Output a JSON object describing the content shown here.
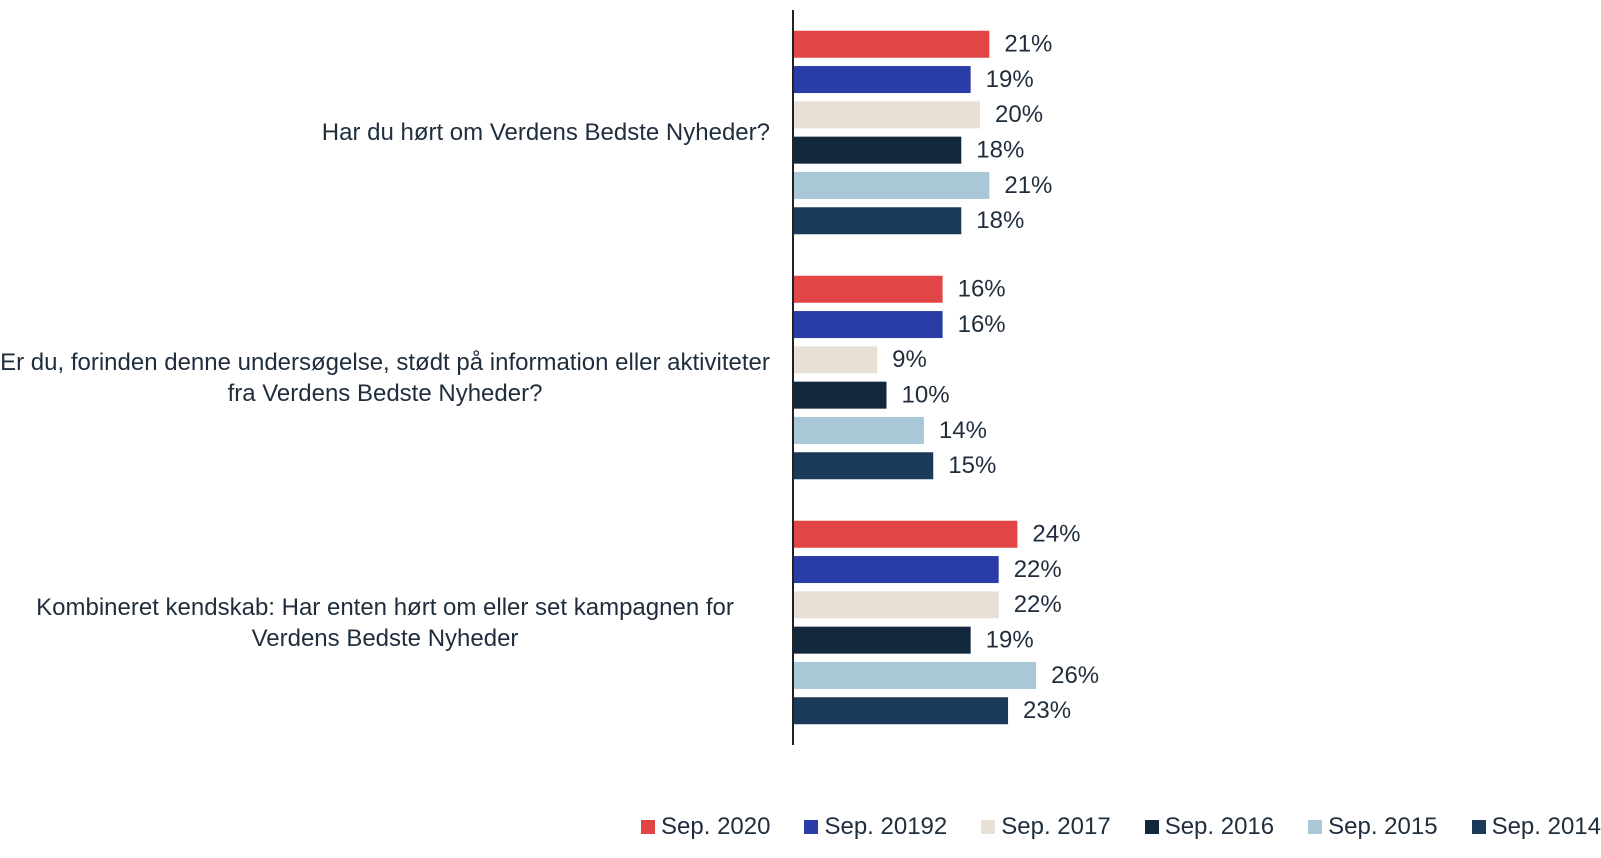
{
  "chart_data": {
    "type": "bar",
    "orientation": "horizontal",
    "categories": [
      "Har du hørt om Verdens Bedste Nyheder?",
      "Er du, forinden denne undersøgelse, stødt på information eller aktiviteter fra Verdens Bedste Nyheder?",
      "Kombineret kendskab: Har enten hørt om eller set kampagnen for Verdens Bedste Nyheder"
    ],
    "xlim": [
      0,
      80
    ],
    "legend": "bottom",
    "series": [
      {
        "name": "Sep. 2020",
        "color": "#e24545",
        "values": [
          21,
          16,
          24
        ],
        "value_labels": [
          "21%",
          "16%",
          "24%"
        ]
      },
      {
        "name": "Sep. 20192",
        "color": "#2a3ca5",
        "values": [
          19,
          16,
          22
        ],
        "value_labels": [
          "19%",
          "16%",
          "22%"
        ]
      },
      {
        "name": "Sep. 2017",
        "color": "#e8e0d4",
        "values": [
          20,
          9,
          22
        ],
        "value_labels": [
          "20%",
          "9%",
          "22%"
        ]
      },
      {
        "name": "Sep. 2016",
        "color": "#13283d",
        "values": [
          18,
          10,
          19
        ],
        "value_labels": [
          "18%",
          "10%",
          "19%"
        ]
      },
      {
        "name": "Sep. 2015",
        "color": "#a8c8d8",
        "values": [
          21,
          14,
          26
        ],
        "value_labels": [
          "21%",
          "14%",
          "26%"
        ]
      },
      {
        "name": "Sep. 2014",
        "color": "#1b3a5a",
        "values": [
          18,
          15,
          23
        ],
        "value_labels": [
          "18%",
          "15%",
          "23%"
        ]
      }
    ]
  }
}
